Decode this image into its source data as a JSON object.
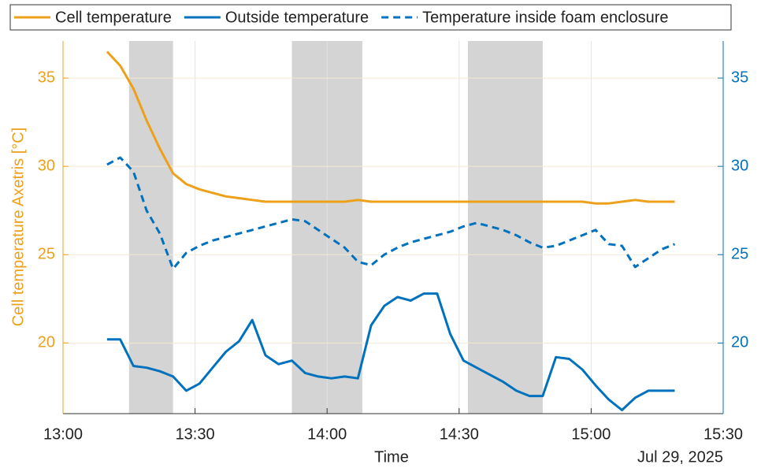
{
  "chart_data": {
    "type": "line",
    "ylabel": "Cell temperature Axetris [°C]",
    "xlabel": "Time",
    "x_date_label": "Jul 29, 2025",
    "x": [
      "13:10",
      "13:13",
      "13:16",
      "13:19",
      "13:22",
      "13:25",
      "13:28",
      "13:31",
      "13:34",
      "13:37",
      "13:40",
      "13:43",
      "13:46",
      "13:49",
      "13:52",
      "13:55",
      "13:58",
      "14:01",
      "14:04",
      "14:07",
      "14:10",
      "14:13",
      "14:16",
      "14:19",
      "14:22",
      "14:25",
      "14:28",
      "14:31",
      "14:34",
      "14:37",
      "14:40",
      "14:43",
      "14:46",
      "14:49",
      "14:52",
      "14:55",
      "14:58",
      "15:01",
      "15:04",
      "15:07",
      "15:10",
      "15:13",
      "15:16",
      "15:19"
    ],
    "series": [
      {
        "name": "Cell temperature",
        "color": "#EDA01A",
        "style": "solid",
        "values": [
          36.5,
          35.7,
          34.4,
          32.6,
          31.0,
          29.6,
          29.0,
          28.7,
          28.5,
          28.3,
          28.2,
          28.1,
          28.0,
          28.0,
          28.0,
          28.0,
          28.0,
          28.0,
          28.0,
          28.1,
          28.0,
          28.0,
          28.0,
          28.0,
          28.0,
          28.0,
          28.0,
          28.0,
          28.0,
          28.0,
          28.0,
          28.0,
          28.0,
          28.0,
          28.0,
          28.0,
          28.0,
          27.9,
          27.9,
          28.0,
          28.1,
          28.0,
          28.0,
          28.0
        ]
      },
      {
        "name": "Outside temperature",
        "color": "#0072BD",
        "style": "solid",
        "axis": "y2",
        "values": [
          20.2,
          20.2,
          18.7,
          18.6,
          18.4,
          18.1,
          17.3,
          17.7,
          18.6,
          19.5,
          20.1,
          21.3,
          19.3,
          18.8,
          19.0,
          18.3,
          18.1,
          18.0,
          18.1,
          18.0,
          21.0,
          22.1,
          22.6,
          22.4,
          22.8,
          22.8,
          20.5,
          19.0,
          18.6,
          18.2,
          17.8,
          17.3,
          17.0,
          17.0,
          19.2,
          19.1,
          18.5,
          17.6,
          16.8,
          16.2,
          16.9,
          17.3,
          17.3,
          17.3
        ]
      },
      {
        "name": "Temperature inside foam enclosure",
        "color": "#0072BD",
        "style": "dashed",
        "axis": "y2",
        "values": [
          30.1,
          30.5,
          29.7,
          27.5,
          26.2,
          24.2,
          25.1,
          25.5,
          25.8,
          26.0,
          26.2,
          26.4,
          26.6,
          26.8,
          27.0,
          26.9,
          26.4,
          25.9,
          25.4,
          24.6,
          24.4,
          25.0,
          25.4,
          25.7,
          25.9,
          26.1,
          26.3,
          26.6,
          26.8,
          26.6,
          26.4,
          26.1,
          25.7,
          25.4,
          25.5,
          25.8,
          26.1,
          26.4,
          25.6,
          25.5,
          24.3,
          24.8,
          25.3,
          25.6
        ]
      }
    ],
    "shaded_periods": [
      [
        "13:15",
        "13:25"
      ],
      [
        "13:52",
        "14:08"
      ],
      [
        "14:32",
        "14:49"
      ]
    ],
    "shade_color": "#D4D4D4",
    "xlim": [
      "13:00",
      "15:30"
    ],
    "xticks": [
      "13:00",
      "13:30",
      "14:00",
      "14:30",
      "15:00",
      "15:30"
    ],
    "ylim": [
      16,
      37.1
    ],
    "yticks": [
      20,
      25,
      30,
      35
    ],
    "y2lim": [
      16,
      37.1
    ],
    "y2ticks": [
      20,
      25,
      30,
      35
    ],
    "grid": true,
    "legend": "top"
  }
}
